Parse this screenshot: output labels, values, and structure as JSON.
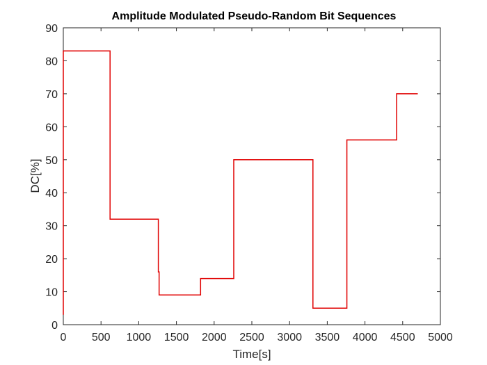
{
  "chart_data": {
    "type": "line",
    "title": "Amplitude Modulated Pseudo-Random Bit Sequences",
    "xlabel": "Time[s]",
    "ylabel": "DC[%]",
    "xlim": [
      0,
      5000
    ],
    "ylim": [
      0,
      90
    ],
    "xticks": [
      0,
      500,
      1000,
      1500,
      2000,
      2500,
      3000,
      3500,
      4000,
      4500,
      5000
    ],
    "yticks": [
      0,
      10,
      20,
      30,
      40,
      50,
      60,
      70,
      80,
      90
    ],
    "grid": false,
    "line_color": "#e00000",
    "series": [
      {
        "x": [
          0,
          0,
          5,
          5,
          620,
          620,
          1260,
          1260,
          1270,
          1270,
          1820,
          1820,
          2260,
          2260,
          3310,
          3310,
          3760,
          3760,
          4420,
          4420,
          4700
        ],
        "y": [
          3,
          83,
          83,
          83,
          83,
          32,
          32,
          16,
          16,
          9,
          9,
          14,
          14,
          50,
          50,
          5,
          5,
          56,
          56,
          70,
          70
        ]
      }
    ]
  }
}
